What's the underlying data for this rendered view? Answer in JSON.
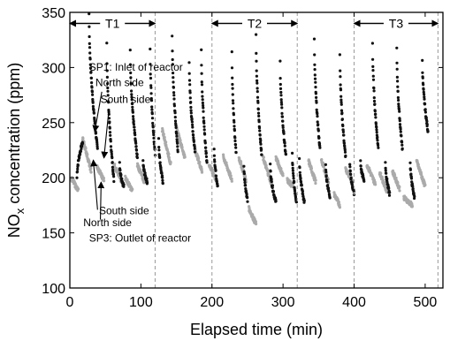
{
  "chart_data": {
    "type": "scatter",
    "title": "",
    "xlabel": "Elapsed time (min)",
    "ylabel_main": "NO",
    "ylabel_sub": "x",
    "ylabel_rest": " concentration (ppm)",
    "xlim": [
      0,
      525
    ],
    "ylim": [
      100,
      350
    ],
    "xticks": [
      "0",
      "100",
      "200",
      "300",
      "400",
      "500"
    ],
    "yticks": [
      "100",
      "150",
      "200",
      "250",
      "300",
      "350"
    ],
    "xtick_values": [
      0,
      100,
      200,
      300,
      400,
      500
    ],
    "ytick_values": [
      100,
      150,
      200,
      250,
      300,
      350
    ],
    "grid": false,
    "vlines": [
      120,
      200,
      320,
      400,
      518
    ],
    "regions": [
      {
        "label": "T1",
        "x_start": 0,
        "x_end": 120,
        "y": 340
      },
      {
        "label": "T2",
        "x_start": 200,
        "x_end": 320,
        "y": 340
      },
      {
        "label": "T3",
        "x_start": 400,
        "x_end": 518,
        "y": 340
      }
    ],
    "annotations": [
      {
        "text": "SP1: Inlet of reactor",
        "x": 27,
        "y": 297
      },
      {
        "text": "North side",
        "x": 36,
        "y": 283
      },
      {
        "text": "South side",
        "x": 43,
        "y": 268
      },
      {
        "text": "South side",
        "x": 41,
        "y": 167
      },
      {
        "text": "North side",
        "x": 19,
        "y": 156
      },
      {
        "text": "SP3: Outlet of reactor",
        "x": 27,
        "y": 142
      }
    ],
    "arrows": [
      {
        "from": [
          45,
          278
        ],
        "to": [
          35,
          242
        ]
      },
      {
        "from": [
          55,
          262
        ],
        "to": [
          48,
          218
        ]
      },
      {
        "from": [
          39,
          171
        ],
        "to": [
          33,
          216
        ]
      },
      {
        "from": [
          43,
          162
        ],
        "to": [
          44,
          196
        ]
      }
    ],
    "series": [
      {
        "key": "sp1",
        "color": "#111111",
        "segments": [
          {
            "x0": 10,
            "x1": 18,
            "start": 200,
            "end": 232
          },
          {
            "x0": 27,
            "x1": 39,
            "start": 350,
            "end": 226
          },
          {
            "x0": 52,
            "x1": 62,
            "start": 322,
            "end": 198
          },
          {
            "x0": 70,
            "x1": 76,
            "start": 214,
            "end": 192
          },
          {
            "x0": 85,
            "x1": 95,
            "start": 315,
            "end": 218
          },
          {
            "x0": 103,
            "x1": 109,
            "start": 215,
            "end": 196
          },
          {
            "x0": 113,
            "x1": 120,
            "start": 318,
            "end": 222
          },
          {
            "x0": 125,
            "x1": 131,
            "start": 236,
            "end": 196
          },
          {
            "x0": 144,
            "x1": 152,
            "start": 330,
            "end": 225
          },
          {
            "x0": 168,
            "x1": 176,
            "start": 305,
            "end": 225
          },
          {
            "x0": 185,
            "x1": 193,
            "start": 318,
            "end": 213
          },
          {
            "x0": 203,
            "x1": 208,
            "start": 228,
            "end": 193
          },
          {
            "x0": 228,
            "x1": 234,
            "start": 315,
            "end": 222
          },
          {
            "x0": 245,
            "x1": 250,
            "start": 212,
            "end": 180
          },
          {
            "x0": 262,
            "x1": 270,
            "start": 328,
            "end": 220
          },
          {
            "x0": 282,
            "x1": 290,
            "start": 212,
            "end": 178
          },
          {
            "x0": 296,
            "x1": 304,
            "start": 305,
            "end": 220
          },
          {
            "x0": 313,
            "x1": 319,
            "start": 222,
            "end": 178
          },
          {
            "x0": 323,
            "x1": 330,
            "start": 218,
            "end": 178
          },
          {
            "x0": 344,
            "x1": 352,
            "start": 325,
            "end": 226
          },
          {
            "x0": 360,
            "x1": 366,
            "start": 212,
            "end": 183
          },
          {
            "x0": 380,
            "x1": 388,
            "start": 312,
            "end": 219
          },
          {
            "x0": 394,
            "x1": 400,
            "start": 213,
            "end": 186
          },
          {
            "x0": 409,
            "x1": 414,
            "start": 214,
            "end": 198
          },
          {
            "x0": 426,
            "x1": 434,
            "start": 322,
            "end": 227
          },
          {
            "x0": 444,
            "x1": 450,
            "start": 215,
            "end": 185
          },
          {
            "x0": 460,
            "x1": 468,
            "start": 317,
            "end": 226
          },
          {
            "x0": 479,
            "x1": 485,
            "start": 215,
            "end": 182
          },
          {
            "x0": 496,
            "x1": 504,
            "start": 307,
            "end": 242
          }
        ]
      },
      {
        "key": "sp3",
        "color": "#aaaaaa",
        "segments": [
          {
            "x0": 2,
            "x1": 12,
            "start": 200,
            "end": 188
          },
          {
            "x0": 18,
            "x1": 30,
            "start": 236,
            "end": 206
          },
          {
            "x0": 38,
            "x1": 48,
            "start": 210,
            "end": 198
          },
          {
            "x0": 62,
            "x1": 72,
            "start": 212,
            "end": 198
          },
          {
            "x0": 78,
            "x1": 88,
            "start": 200,
            "end": 188
          },
          {
            "x0": 95,
            "x1": 105,
            "start": 212,
            "end": 196
          },
          {
            "x0": 130,
            "x1": 142,
            "start": 244,
            "end": 212
          },
          {
            "x0": 150,
            "x1": 162,
            "start": 245,
            "end": 218
          },
          {
            "x0": 176,
            "x1": 186,
            "start": 226,
            "end": 206
          },
          {
            "x0": 196,
            "x1": 206,
            "start": 212,
            "end": 198
          },
          {
            "x0": 216,
            "x1": 228,
            "start": 219,
            "end": 198
          },
          {
            "x0": 238,
            "x1": 248,
            "start": 218,
            "end": 198
          },
          {
            "x0": 252,
            "x1": 262,
            "start": 172,
            "end": 158
          },
          {
            "x0": 272,
            "x1": 284,
            "start": 218,
            "end": 194
          },
          {
            "x0": 290,
            "x1": 300,
            "start": 218,
            "end": 202
          },
          {
            "x0": 306,
            "x1": 314,
            "start": 198,
            "end": 192
          },
          {
            "x0": 336,
            "x1": 346,
            "start": 215,
            "end": 196
          },
          {
            "x0": 354,
            "x1": 364,
            "start": 216,
            "end": 196
          },
          {
            "x0": 372,
            "x1": 380,
            "start": 185,
            "end": 175
          },
          {
            "x0": 388,
            "x1": 398,
            "start": 208,
            "end": 196
          },
          {
            "x0": 418,
            "x1": 430,
            "start": 212,
            "end": 194
          },
          {
            "x0": 436,
            "x1": 446,
            "start": 205,
            "end": 188
          },
          {
            "x0": 454,
            "x1": 464,
            "start": 206,
            "end": 190
          },
          {
            "x0": 470,
            "x1": 482,
            "start": 182,
            "end": 175
          },
          {
            "x0": 488,
            "x1": 500,
            "start": 215,
            "end": 192
          }
        ]
      }
    ]
  }
}
